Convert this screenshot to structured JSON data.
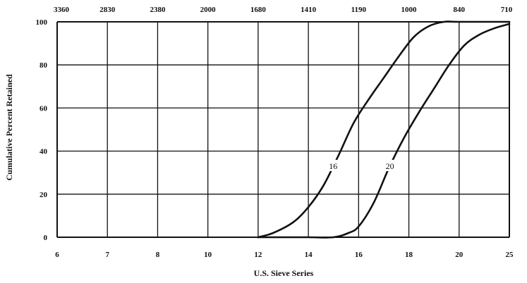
{
  "chart_data": {
    "type": "line",
    "xlabel": "U.S. Sieve Series",
    "ylabel": "Cumulative Percent Retained",
    "x_ticks": [
      "6",
      "7",
      "8",
      "10",
      "12",
      "14",
      "16",
      "18",
      "20",
      "25"
    ],
    "top_ticks": [
      "3360",
      "2830",
      "2380",
      "2000",
      "1680",
      "1410",
      "1190",
      "1000",
      "840",
      "710"
    ],
    "y_ticks": [
      "0",
      "20",
      "40",
      "60",
      "80",
      "100"
    ],
    "ylim": [
      0,
      100
    ],
    "grid": true,
    "series": [
      {
        "name": "16",
        "points": [
          [
            4.0,
            0
          ],
          [
            4.3,
            2
          ],
          [
            4.7,
            7
          ],
          [
            5.0,
            14
          ],
          [
            5.3,
            24
          ],
          [
            5.6,
            38
          ],
          [
            5.9,
            53
          ],
          [
            6.2,
            64
          ],
          [
            6.5,
            74
          ],
          [
            6.8,
            84
          ],
          [
            7.1,
            93
          ],
          [
            7.4,
            98
          ],
          [
            7.7,
            100
          ],
          [
            8.0,
            100
          ],
          [
            9.0,
            100
          ]
        ]
      },
      {
        "name": "20",
        "points": [
          [
            4.0,
            0
          ],
          [
            5.0,
            0
          ],
          [
            5.5,
            0
          ],
          [
            5.8,
            2
          ],
          [
            6.0,
            5
          ],
          [
            6.3,
            16
          ],
          [
            6.6,
            32
          ],
          [
            6.9,
            46
          ],
          [
            7.2,
            58
          ],
          [
            7.5,
            69
          ],
          [
            7.8,
            80
          ],
          [
            8.1,
            89
          ],
          [
            8.4,
            94
          ],
          [
            8.7,
            97
          ],
          [
            9.0,
            99
          ]
        ]
      }
    ]
  }
}
